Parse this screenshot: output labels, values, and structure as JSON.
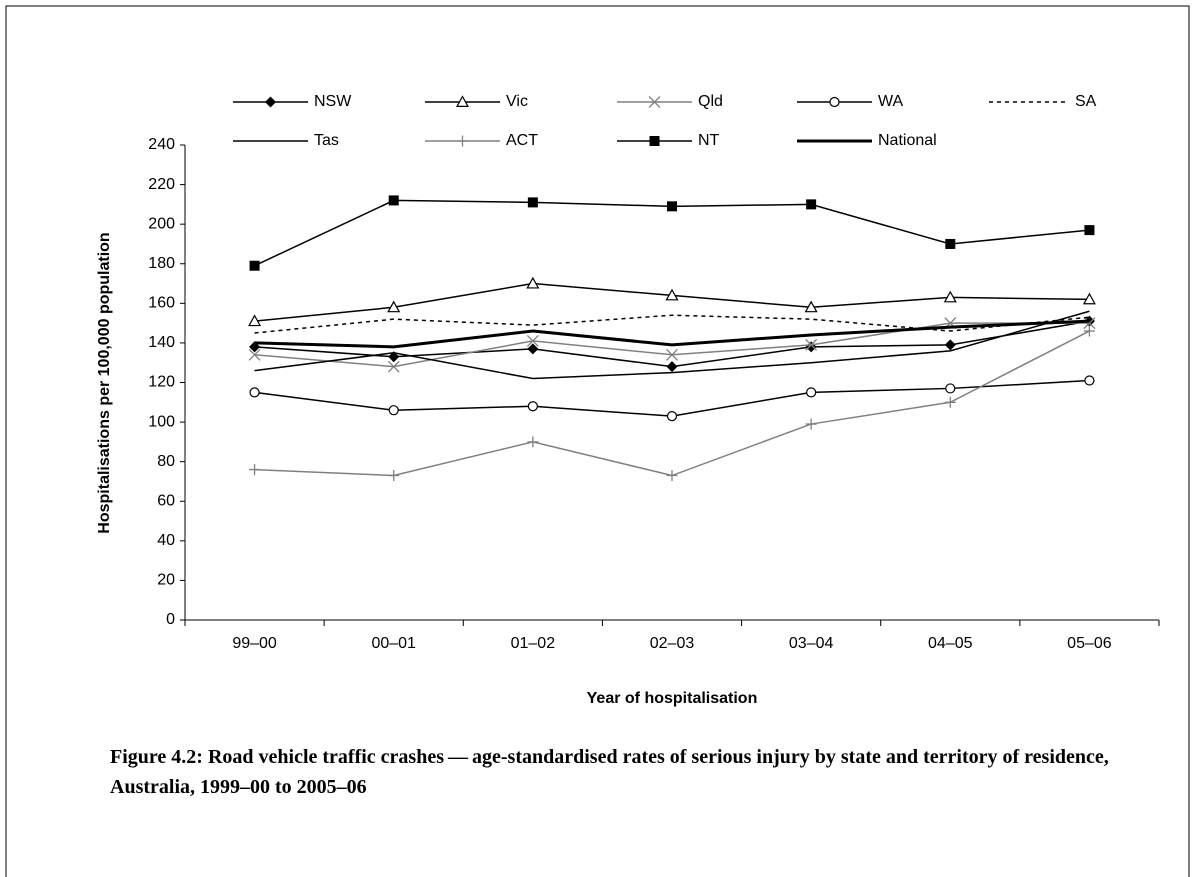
{
  "chart_data": {
    "type": "line",
    "caption": "Figure 4.2: Road vehicle traffic crashes — age-standardised rates of serious injury by state and territory of residence, Australia, 1999–00 to 2005–06",
    "x_label": "Year of hospitalisation",
    "y_label": "Hospitalisations per 100,000 population",
    "categories": [
      "99–00",
      "00–01",
      "01–02",
      "02–03",
      "03–04",
      "04–05",
      "05–06"
    ],
    "ylim": [
      0,
      240
    ],
    "yticks": [
      0,
      20,
      40,
      60,
      80,
      100,
      120,
      140,
      160,
      180,
      200,
      220,
      240
    ],
    "grid": false,
    "legend": "top",
    "series": [
      {
        "name": "NSW",
        "color": "#000000",
        "marker": "diamond",
        "values": [
          138,
          133,
          137,
          128,
          138,
          139,
          151
        ]
      },
      {
        "name": "Vic",
        "color": "#000000",
        "marker": "triangle",
        "values": [
          151,
          158,
          170,
          164,
          158,
          163,
          162
        ]
      },
      {
        "name": "Qld",
        "color": "#808080",
        "marker": "x",
        "values": [
          134,
          128,
          141,
          134,
          139,
          150,
          150
        ]
      },
      {
        "name": "WA",
        "color": "#000000",
        "marker": "circle",
        "values": [
          115,
          106,
          108,
          103,
          115,
          117,
          121
        ]
      },
      {
        "name": "SA",
        "color": "#000000",
        "marker": "none",
        "dash": true,
        "values": [
          145,
          152,
          149,
          154,
          152,
          146,
          153
        ]
      },
      {
        "name": "Tas",
        "color": "#000000",
        "marker": "none",
        "values": [
          126,
          135,
          122,
          125,
          130,
          136,
          156
        ]
      },
      {
        "name": "ACT",
        "color": "#808080",
        "marker": "plus",
        "values": [
          76,
          73,
          90,
          73,
          99,
          110,
          146
        ]
      },
      {
        "name": "NT",
        "color": "#000000",
        "marker": "square",
        "values": [
          179,
          212,
          211,
          209,
          210,
          190,
          197
        ]
      },
      {
        "name": "National",
        "color": "#000000",
        "marker": "none",
        "bold": true,
        "values": [
          140,
          138,
          146,
          139,
          144,
          148,
          151
        ]
      }
    ]
  }
}
